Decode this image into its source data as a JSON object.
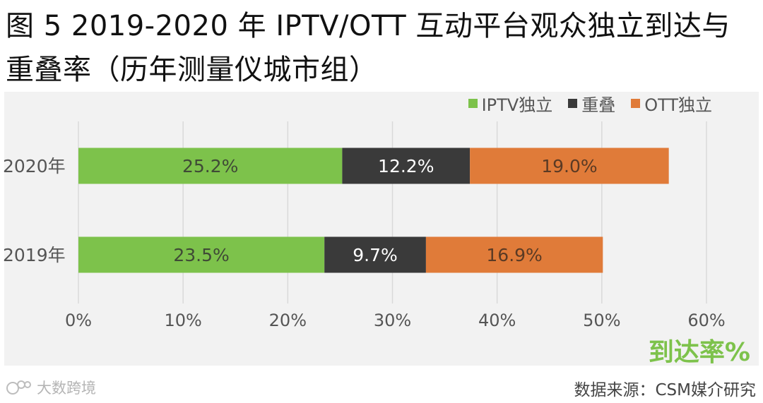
{
  "title": "图 5 2019-2020 年 IPTV/OTT 互动平台观众独立到达与重叠率（历年测量仪城市组）",
  "metric_label": "到达率%",
  "source": "数据来源：CSM媒介研究",
  "watermark": "大数跨境",
  "colors": {
    "iptv": "#7dc24b",
    "overlap": "#3a3a3a",
    "ott": "#e07b39",
    "panel": "#f2f2f2",
    "grid": "#d9d9d9"
  },
  "legend": [
    {
      "label": "IPTV独立",
      "color": "#7dc24b"
    },
    {
      "label": "重叠",
      "color": "#3a3a3a"
    },
    {
      "label": "OTT独立",
      "color": "#e07b39"
    }
  ],
  "chart_data": {
    "type": "bar",
    "orientation": "horizontal",
    "stacked": true,
    "categories": [
      "2020年",
      "2019年"
    ],
    "series": [
      {
        "name": "IPTV独立",
        "values": [
          25.2,
          23.5
        ],
        "labels": [
          "25.2%",
          "23.5%"
        ]
      },
      {
        "name": "重叠",
        "values": [
          12.2,
          9.7
        ],
        "labels": [
          "12.2%",
          "9.7%"
        ]
      },
      {
        "name": "OTT独立",
        "values": [
          19.0,
          16.9
        ],
        "labels": [
          "19.0%",
          "16.9%"
        ]
      }
    ],
    "xlim": [
      0,
      60
    ],
    "xticks": [
      "0%",
      "10%",
      "20%",
      "30%",
      "40%",
      "50%",
      "60%"
    ],
    "grid": true,
    "legend_position": "top-right"
  }
}
